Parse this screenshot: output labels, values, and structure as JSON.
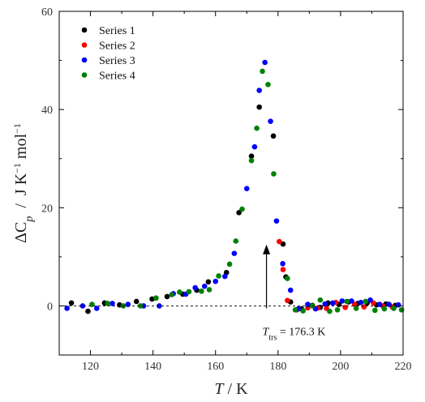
{
  "chart_data": {
    "type": "scatter",
    "xlim": [
      110,
      220
    ],
    "ylim": [
      -10,
      60
    ],
    "x_ticks": [
      120,
      140,
      160,
      180,
      200,
      220
    ],
    "y_ticks": [
      0,
      20,
      40,
      60
    ],
    "x_label_var": "T",
    "x_label_sep": " / ",
    "x_label_unit": "K",
    "y_label_main": "ΔC",
    "y_label_sub": "p",
    "y_label_units": "  /  J K",
    "y_label_exp1": "−1",
    "y_label_mol": " mol",
    "y_label_exp2": "−1",
    "legend_position": "top-left",
    "grid": false,
    "baseline": {
      "y": 0,
      "style": "dashed"
    },
    "annotation": {
      "label_main": "T",
      "label_sub": "trs",
      "label_rest": " = 176.3 K",
      "arrow_x": 176.3,
      "arrow_y_from": -0.5,
      "arrow_y_to": 12.5
    },
    "series": [
      {
        "name": "Series 1",
        "color": "#000000",
        "x": [
          113.9,
          119.2,
          124.5,
          129.3,
          134.7,
          139.7,
          144.5,
          149.5,
          154.0,
          157.7,
          163.5,
          167.5,
          171.5,
          174.0,
          178.5,
          181.6,
          182.5,
          184.0,
          187.5,
          191.0,
          193.5,
          196.0,
          199.5,
          202.5,
          205.5,
          208.5,
          211.5,
          214.5,
          217.5
        ],
        "y": [
          0.6,
          -1.1,
          0.6,
          0.2,
          0.9,
          1.4,
          1.9,
          2.4,
          3.2,
          4.9,
          6.8,
          19.0,
          30.5,
          40.5,
          34.6,
          12.6,
          5.9,
          0.8,
          -0.6,
          0.1,
          -0.3,
          0.6,
          0.3,
          0.8,
          0.5,
          0.6,
          0.2,
          0.4,
          0.1
        ]
      },
      {
        "name": "Series 2",
        "color": "#ff0000",
        "x": [
          180.4,
          181.6,
          183.0,
          186.0,
          189.5,
          192.8,
          195.5,
          198.5,
          201.5,
          204.5,
          207.5,
          210.5,
          213.5,
          216.5
        ],
        "y": [
          13.1,
          7.4,
          1.1,
          -0.8,
          -0.4,
          -0.4,
          -0.5,
          0.7,
          -0.3,
          0.3,
          -0.2,
          0.6,
          0.0,
          -0.2
        ]
      },
      {
        "name": "Series 3",
        "color": "#0000ff",
        "x": [
          112.5,
          117.5,
          122.0,
          127.0,
          132.0,
          137.0,
          142.0,
          146.5,
          150.5,
          153.5,
          156.5,
          160.0,
          163.0,
          166.0,
          170.0,
          172.5,
          174.0,
          175.8,
          177.6,
          179.5,
          181.5,
          184.0,
          186.5,
          189.5,
          192.0,
          195.0,
          197.5,
          200.5,
          203.5,
          206.5,
          209.5,
          212.5,
          215.5,
          218.5
        ],
        "y": [
          -0.5,
          0.0,
          -0.5,
          0.5,
          0.3,
          0.0,
          0.0,
          2.5,
          2.4,
          3.7,
          4.0,
          5.0,
          6.0,
          10.7,
          23.9,
          32.4,
          43.9,
          49.6,
          37.6,
          17.3,
          8.6,
          3.2,
          -0.6,
          0.3,
          -0.6,
          0.4,
          0.6,
          1.0,
          1.0,
          0.7,
          1.2,
          0.3,
          0.3,
          0.2
        ]
      },
      {
        "name": "Series 4",
        "color": "#008000",
        "x": [
          120.5,
          125.5,
          130.5,
          136.0,
          141.0,
          146.0,
          148.5,
          151.5,
          155.5,
          158.0,
          161.0,
          164.5,
          166.5,
          168.5,
          171.5,
          173.2,
          175.0,
          176.8,
          178.6,
          183.0,
          185.5,
          188.0,
          191.0,
          193.5,
          196.5,
          199.0,
          202.0,
          205.0,
          208.0,
          211.0,
          214.0,
          217.0,
          219.5
        ],
        "y": [
          0.3,
          0.5,
          0.0,
          0.0,
          1.6,
          2.3,
          2.8,
          2.9,
          3.0,
          3.3,
          6.1,
          8.5,
          13.2,
          19.7,
          29.6,
          36.2,
          47.8,
          45.1,
          26.9,
          5.6,
          -0.8,
          -1.0,
          0.0,
          1.2,
          -1.1,
          -0.8,
          0.9,
          -0.5,
          0.9,
          -0.9,
          -0.6,
          -0.5,
          -0.8
        ]
      }
    ]
  }
}
